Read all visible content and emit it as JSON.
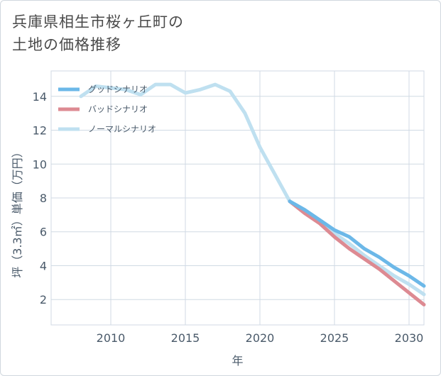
{
  "title_line1": "兵庫県相生市桜ヶ丘町の",
  "title_line2": "土地の価格推移",
  "colors": {
    "good": "#6cb8e8",
    "bad": "#dd8a92",
    "normal": "#bfe0f0",
    "grid": "#d0dae4"
  },
  "chart_data": {
    "type": "line",
    "xlabel": "年",
    "ylabel": "坪（3.3㎡）単価（万円）",
    "xlim": [
      2006,
      2031
    ],
    "ylim": [
      0.5,
      15.5
    ],
    "xticks": [
      "2010",
      "2015",
      "2020",
      "2025",
      "2030"
    ],
    "yticks": [
      "2",
      "4",
      "6",
      "8",
      "10",
      "12",
      "14"
    ],
    "legend_position": "top-left",
    "series": [
      {
        "name": "グッドシナリオ",
        "color": "#6cb8e8",
        "x": [
          2022,
          2023,
          2024,
          2025,
          2026,
          2027,
          2028,
          2029,
          2030,
          2031
        ],
        "y": [
          7.8,
          7.3,
          6.7,
          6.1,
          5.7,
          5.0,
          4.5,
          3.9,
          3.4,
          2.8
        ]
      },
      {
        "name": "バッドシナリオ",
        "color": "#dd8a92",
        "x": [
          2022,
          2023,
          2024,
          2025,
          2026,
          2027,
          2028,
          2029,
          2030,
          2031
        ],
        "y": [
          7.8,
          7.1,
          6.5,
          5.7,
          5.0,
          4.4,
          3.8,
          3.1,
          2.4,
          1.7
        ]
      },
      {
        "name": "ノーマルシナリオ",
        "color": "#bfe0f0",
        "x": [
          2008,
          2009,
          2010,
          2011,
          2012,
          2013,
          2014,
          2015,
          2016,
          2017,
          2018,
          2019,
          2020,
          2021,
          2022,
          2023,
          2024,
          2025,
          2026,
          2027,
          2028,
          2029,
          2030,
          2031
        ],
        "y": [
          14.0,
          14.6,
          14.5,
          14.4,
          14.1,
          14.7,
          14.7,
          14.2,
          14.4,
          14.7,
          14.3,
          13.0,
          11.0,
          9.4,
          7.8,
          7.2,
          6.6,
          5.9,
          5.3,
          4.6,
          4.0,
          3.4,
          2.9,
          2.3
        ]
      }
    ]
  }
}
